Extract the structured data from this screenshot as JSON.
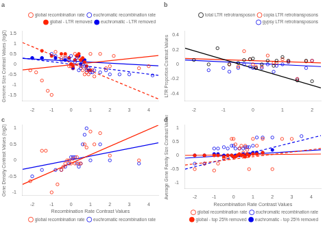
{
  "chart_data": [
    {
      "type": "scatter",
      "title": "a",
      "y_label": "Genome Size Contrast Values (log2)",
      "xlim": [
        -2.5,
        4.5
      ],
      "ylim": [
        -1.8,
        1.6
      ],
      "xticks": [
        -2,
        -1,
        0,
        1,
        2,
        3,
        4
      ],
      "yticks": [
        -1.5,
        -1.0,
        -0.5,
        0.0,
        0.5,
        1.0,
        1.5
      ],
      "grid": false,
      "legend": "upper right",
      "series": [
        {
          "type": "line",
          "color": "#FF2200",
          "line_style": "solid",
          "x": [
            -2.5,
            4.5
          ],
          "values": [
            -0.28,
            0.42
          ]
        },
        {
          "type": "line",
          "color": "#FF2200",
          "line_style": "dashed",
          "x": [
            -2.5,
            4.5
          ],
          "values": [
            1.05,
            -1.7
          ]
        },
        {
          "type": "line",
          "color": "#0000EE",
          "line_style": "solid",
          "x": [
            -2.5,
            4.5
          ],
          "values": [
            0.28,
            -0.08
          ]
        },
        {
          "type": "line",
          "color": "#0000EE",
          "line_style": "dashed",
          "x": [
            -2.5,
            4.5
          ],
          "values": [
            0.3,
            -0.55
          ]
        },
        {
          "name": "global recombination rate",
          "type": "scatter",
          "color": "#FF2200",
          "marker": "circle_open",
          "x": [
            -2.1,
            -1.8,
            -1.5,
            -1.2,
            -1.0,
            -0.8,
            -0.5,
            -0.3,
            -0.1,
            0.0,
            0.1,
            0.2,
            0.3,
            0.4,
            0.5,
            0.6,
            0.7,
            0.8,
            0.9,
            1.0,
            1.1,
            1.2,
            1.5,
            1.8,
            2.0,
            2.2,
            3.5,
            4.0
          ],
          "values": [
            -0.3,
            -0.4,
            -0.8,
            -1.3,
            -1.5,
            0.6,
            0.3,
            0.4,
            -0.1,
            -0.1,
            -0.2,
            0.5,
            0.4,
            0.3,
            -0.1,
            -0.3,
            -0.5,
            -0.4,
            -0.5,
            0.5,
            -0.3,
            -0.6,
            0.5,
            -0.2,
            -0.1,
            0.4,
            -0.2,
            -0.1
          ]
        },
        {
          "name": "euchromatic recombination rate",
          "type": "scatter",
          "color": "#0000EE",
          "marker": "circle_open",
          "x": [
            -2.0,
            -1.5,
            -1.0,
            -0.8,
            -0.5,
            -0.3,
            -0.1,
            0.0,
            0.1,
            0.2,
            0.3,
            0.4,
            0.5,
            0.6,
            0.7,
            0.8,
            0.9,
            1.0,
            1.1,
            1.2,
            1.5,
            1.8,
            2.0,
            2.5,
            3.0,
            4.2
          ],
          "values": [
            0.3,
            0.3,
            0.5,
            0.4,
            0.2,
            0.3,
            0.2,
            0.4,
            -0.2,
            0.1,
            0.3,
            -0.3,
            -0.2,
            0.0,
            -0.1,
            -0.3,
            -0.2,
            -0.4,
            -0.4,
            -0.3,
            -0.4,
            -0.3,
            -0.5,
            -0.5,
            -0.5,
            -0.55
          ]
        },
        {
          "name": "global - LTR removed",
          "type": "scatter",
          "color": "#FF2200",
          "marker": "circle",
          "x": [
            -1.5,
            -1.0,
            -0.5,
            -0.3,
            -0.1,
            0.0,
            0.1,
            0.2,
            0.3,
            0.4,
            0.5,
            0.6,
            0.7,
            0.8,
            0.9,
            1.0
          ],
          "values": [
            0.65,
            0.4,
            0.5,
            0.5,
            0.3,
            0.0,
            -0.1,
            0.2,
            0.4,
            0.5,
            0.2,
            0.3,
            0.1,
            -0.1,
            -0.3,
            -0.3
          ]
        },
        {
          "name": "euchromatic - LTR removed",
          "type": "scatter",
          "color": "#0000EE",
          "marker": "circle",
          "x": [
            -2.0,
            -1.5,
            -0.8,
            -0.3,
            -0.1,
            0.0,
            0.1,
            0.2,
            0.3,
            0.4,
            0.5,
            0.6,
            0.7,
            0.8
          ],
          "values": [
            0.3,
            0.3,
            0.3,
            0.2,
            0.3,
            0.0,
            -0.2,
            0.2,
            0.4,
            0.4,
            0.0,
            0.2,
            0.2,
            -0.1
          ]
        }
      ]
    },
    {
      "type": "scatter",
      "title": "b",
      "y_label": "LTR Proportion Contrast Values",
      "xlim": [
        -2.3,
        2.3
      ],
      "ylim": [
        -0.5,
        0.45
      ],
      "xticks": [
        -2,
        -1,
        0,
        1,
        2
      ],
      "yticks": [
        -0.4,
        -0.2,
        0.0,
        0.2,
        0.4
      ],
      "grid": false,
      "legend": "upper right",
      "series": [
        {
          "type": "line",
          "color": "#000000",
          "line_style": "solid",
          "x": [
            -2.3,
            2.3
          ],
          "values": [
            0.22,
            -0.32
          ]
        },
        {
          "type": "line",
          "color": "#FF2200",
          "line_style": "solid",
          "x": [
            -2.3,
            2.3
          ],
          "values": [
            0.08,
            0.02
          ]
        },
        {
          "type": "line",
          "color": "#0000EE",
          "line_style": "solid",
          "x": [
            -2.3,
            2.3
          ],
          "values": [
            0.06,
            -0.03
          ]
        },
        {
          "name": "total LTR retrotransposon",
          "type": "scatter",
          "color": "#000000",
          "marker": "circle_open",
          "x": [
            -2.0,
            -1.5,
            -1.2,
            -0.8,
            -0.5,
            -0.3,
            -0.1,
            0.0,
            0.1,
            0.3,
            0.5,
            0.7,
            0.8,
            1.0,
            1.2,
            1.5,
            1.8,
            2.0
          ],
          "values": [
            0.06,
            0.0,
            0.22,
            0.0,
            0.02,
            0.06,
            0.07,
            0.08,
            -0.05,
            0.0,
            0.05,
            -0.02,
            0.05,
            0.1,
            0.05,
            -0.22,
            0.05,
            -0.23
          ]
        },
        {
          "name": "copia LTR retrotransposons",
          "type": "scatter",
          "color": "#FF2200",
          "marker": "circle_open",
          "x": [
            -0.8,
            -0.5,
            -0.3,
            -0.1,
            0.0,
            0.1,
            0.3,
            0.5,
            0.7,
            0.8,
            1.0,
            1.2,
            1.5,
            1.8,
            2.0
          ],
          "values": [
            0.0,
            -0.03,
            0.18,
            0.07,
            0.0,
            -0.03,
            -0.03,
            0.12,
            0.02,
            0.02,
            0.07,
            0.04,
            -0.2,
            0.04,
            0.05
          ]
        },
        {
          "name": "gypsy LTR retrotransposons",
          "type": "scatter",
          "color": "#0000EE",
          "marker": "circle_open",
          "x": [
            -1.5,
            -1.0,
            -0.8,
            -0.5,
            -0.3,
            -0.1,
            0.0,
            0.1,
            0.3,
            0.5,
            0.7,
            0.8,
            1.0,
            1.2,
            1.5,
            1.8,
            2.0
          ],
          "values": [
            -0.08,
            -0.05,
            -0.1,
            -0.05,
            0.0,
            -0.03,
            -0.05,
            -0.05,
            -0.05,
            0.0,
            -0.1,
            -0.02,
            0.0,
            0.03,
            -0.2,
            -0.05,
            0.05
          ]
        }
      ]
    },
    {
      "type": "scatter",
      "title": "c",
      "y_label": "Gene Density Contrast Values (log2)",
      "x_label": "Recombination Rate Contrast Values",
      "xlim": [
        -2.5,
        4.5
      ],
      "ylim": [
        -1.1,
        1.1
      ],
      "xticks": [
        -2,
        -1,
        0,
        1,
        2,
        3,
        4
      ],
      "yticks": [
        -1.0,
        -0.5,
        0.0,
        0.5,
        1.0
      ],
      "grid": false,
      "legend": "lower right",
      "series": [
        {
          "type": "line",
          "color": "#FF2200",
          "line_style": "solid",
          "x": [
            -2.5,
            4.5
          ],
          "values": [
            -0.75,
            1.1
          ]
        },
        {
          "type": "line",
          "color": "#0000EE",
          "line_style": "solid",
          "x": [
            -2.5,
            4.5
          ],
          "values": [
            -0.28,
            0.55
          ]
        },
        {
          "name": "global recombination rate",
          "type": "scatter",
          "color": "#FF2200",
          "marker": "circle_open",
          "x": [
            -2.1,
            -1.5,
            -1.3,
            -1.0,
            -0.7,
            -0.5,
            -0.4,
            -0.3,
            -0.2,
            -0.1,
            0.0,
            0.1,
            0.2,
            0.3,
            0.4,
            0.5,
            0.7,
            0.8,
            1.0,
            1.2,
            1.5,
            2.0,
            3.5
          ],
          "values": [
            -0.65,
            0.3,
            0.3,
            -1.0,
            -0.75,
            -0.3,
            -0.2,
            -0.1,
            0.0,
            0.0,
            -0.1,
            0.05,
            -0.1,
            0.1,
            -0.1,
            -0.1,
            0.5,
            0.4,
            0.9,
            0.5,
            0.85,
            0.15,
            0.0
          ]
        },
        {
          "name": "euchromatic recombination rate",
          "type": "scatter",
          "color": "#0000EE",
          "marker": "circle_open",
          "x": [
            -2.0,
            -1.5,
            -0.8,
            -0.5,
            -0.3,
            -0.1,
            0.0,
            0.1,
            0.2,
            0.3,
            0.4,
            0.5,
            0.6,
            0.7,
            0.8,
            1.0,
            1.5,
            2.0,
            3.5
          ],
          "values": [
            -0.5,
            -0.3,
            -0.3,
            -0.3,
            -0.2,
            -0.1,
            0.1,
            0.1,
            0.1,
            -0.1,
            -0.2,
            -0.1,
            0.5,
            0.8,
            1.0,
            0.0,
            0.5,
            0.0,
            -0.1
          ]
        }
      ]
    },
    {
      "type": "scatter",
      "title": "d",
      "y_label": "Average Gene Family Size Contrast Values",
      "x_label": "Recombination Rate Contrast Values",
      "xlim": [
        -2.5,
        4.5
      ],
      "ylim": [
        -1.2,
        1.1
      ],
      "xticks": [
        -2,
        -1,
        0,
        1,
        2,
        3,
        4
      ],
      "yticks": [
        -1.0,
        -0.5,
        0.0,
        0.5,
        1.0
      ],
      "grid": false,
      "legend": "lower right",
      "series": [
        {
          "type": "line",
          "color": "#FF2200",
          "line_style": "solid",
          "x": [
            -2.5,
            4.5
          ],
          "values": [
            0.0,
            0.05
          ]
        },
        {
          "type": "line",
          "color": "#FF2200",
          "line_style": "dashed",
          "x": [
            -2.5,
            4.5
          ],
          "values": [
            -0.35,
            0.25
          ]
        },
        {
          "type": "line",
          "color": "#0000EE",
          "line_style": "solid",
          "x": [
            -2.5,
            4.5
          ],
          "values": [
            -0.1,
            0.2
          ]
        },
        {
          "type": "line",
          "color": "#0000EE",
          "line_style": "dashed",
          "x": [
            -2.5,
            4.5
          ],
          "values": [
            -0.5,
            0.72
          ]
        },
        {
          "name": "global recombination rate",
          "type": "scatter",
          "color": "#FF2200",
          "marker": "circle_open",
          "x": [
            -2.0,
            -1.5,
            -1.0,
            -0.8,
            -0.5,
            -0.3,
            -0.1,
            0.0,
            0.1,
            0.3,
            0.4,
            0.5,
            0.6,
            0.7,
            0.8,
            1.0,
            1.2,
            1.5,
            2.0,
            2.5,
            3.0
          ],
          "values": [
            -0.5,
            -0.3,
            -0.55,
            -0.3,
            -0.1,
            -0.1,
            0.6,
            0.6,
            0.4,
            0.25,
            0.35,
            0.1,
            0.35,
            0.2,
            -0.5,
            0.6,
            0.35,
            0.6,
            -0.5,
            0.6,
            0.6
          ]
        },
        {
          "name": "euchromatic recombination rate",
          "type": "scatter",
          "color": "#0000EE",
          "marker": "circle_open",
          "x": [
            -2.0,
            -1.5,
            -1.0,
            -0.8,
            -0.5,
            -0.3,
            -0.1,
            0.0,
            0.1,
            0.3,
            0.5,
            0.6,
            0.7,
            0.8,
            1.0,
            1.2,
            1.5,
            2.0,
            3.5
          ],
          "values": [
            -0.3,
            -0.3,
            0.25,
            0.25,
            0.3,
            0.25,
            0.35,
            0.35,
            0.25,
            0.25,
            0.25,
            0.3,
            0.3,
            0.3,
            0.35,
            0.65,
            0.65,
            0.65,
            0.7
          ]
        },
        {
          "name": "global - top 25% removed",
          "type": "scatter",
          "color": "#FF2200",
          "marker": "circle",
          "x": [
            -2.0,
            -1.5,
            -1.0,
            -0.8,
            -0.5,
            -0.3,
            -0.1,
            0.0,
            0.1,
            0.2,
            0.3,
            0.4,
            0.5,
            0.6,
            0.7,
            0.8,
            1.0,
            1.2,
            1.5
          ],
          "values": [
            0.0,
            0.0,
            0.0,
            0.0,
            -0.05,
            0.0,
            0.0,
            -0.05,
            -0.05,
            0.0,
            0.05,
            0.0,
            0.0,
            -0.05,
            0.05,
            0.0,
            0.05,
            0.05,
            0.1
          ]
        },
        {
          "name": "euchromatic - top 25% removed",
          "type": "scatter",
          "color": "#0000EE",
          "marker": "circle",
          "x": [
            -2.0,
            -1.5,
            -1.0,
            -0.8,
            -0.5,
            -0.3,
            -0.1,
            0.0,
            0.1,
            0.2,
            0.3,
            0.4,
            0.5,
            0.6,
            0.7,
            0.8,
            1.0,
            1.2,
            1.5,
            2.0
          ],
          "values": [
            0.0,
            0.0,
            0.05,
            0.05,
            0.0,
            0.0,
            0.0,
            -0.05,
            0.0,
            0.0,
            0.0,
            0.0,
            0.05,
            0.0,
            0.05,
            0.05,
            0.1,
            0.1,
            0.1,
            0.2
          ]
        }
      ]
    }
  ]
}
